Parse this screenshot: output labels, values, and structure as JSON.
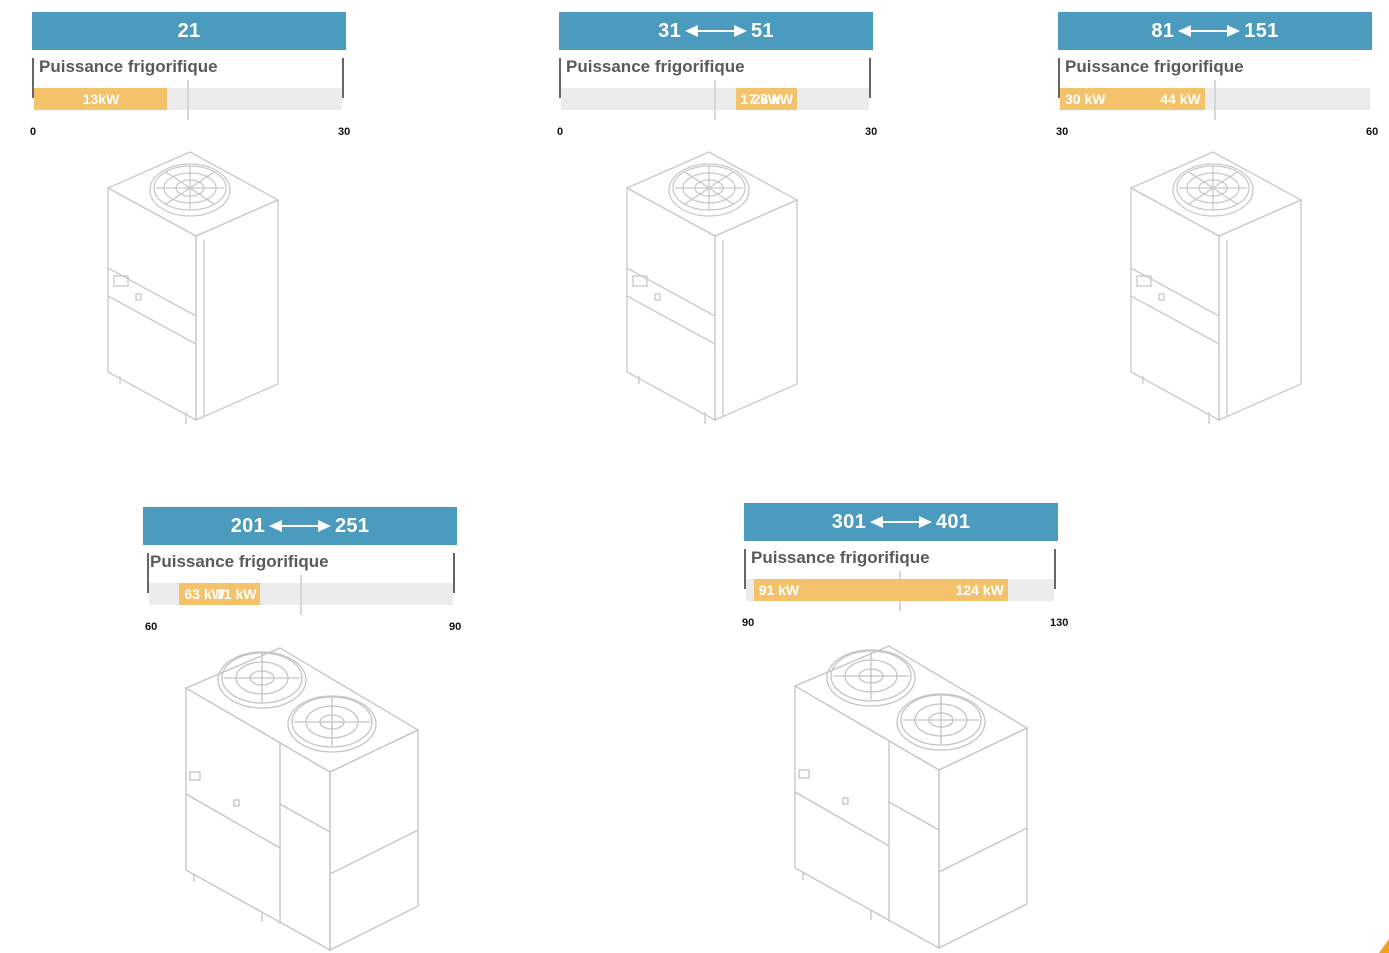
{
  "chart_data": [
    {
      "type": "bar",
      "header": {
        "from": "21",
        "to": ""
      },
      "title": "Puissance frigorifique",
      "xlim": [
        0,
        30
      ],
      "axis_labels": [
        "0",
        "30"
      ],
      "range": [
        0,
        13
      ],
      "value_labels": [
        "13kW"
      ],
      "fans": 1
    },
    {
      "type": "bar",
      "header": {
        "from": "31",
        "to": "51"
      },
      "title": "Puissance frigorifique",
      "xlim": [
        0,
        30
      ],
      "axis_labels": [
        "0",
        "30"
      ],
      "range": [
        17,
        23
      ],
      "value_labels": [
        "17 kW",
        "23 kW"
      ],
      "fans": 1
    },
    {
      "type": "bar",
      "header": {
        "from": "81",
        "to": "151"
      },
      "title": "Puissance frigorifique",
      "xlim": [
        30,
        60
      ],
      "axis_labels": [
        "30",
        "60"
      ],
      "range": [
        30,
        44
      ],
      "value_labels": [
        "30 kW",
        "44 kW"
      ],
      "fans": 1
    },
    {
      "type": "bar",
      "header": {
        "from": "201",
        "to": "251"
      },
      "title": "Puissance frigorifique",
      "xlim": [
        60,
        90
      ],
      "axis_labels": [
        "60",
        "90"
      ],
      "range": [
        63,
        71
      ],
      "value_labels": [
        "63 kW",
        "71 kW"
      ],
      "fans": 2
    },
    {
      "type": "bar",
      "header": {
        "from": "301",
        "to": "401"
      },
      "title": "Puissance frigorifique",
      "xlim": [
        90,
        130
      ],
      "axis_labels": [
        "90",
        "130"
      ],
      "range": [
        91,
        124
      ],
      "value_labels": [
        "91 kW",
        "124 kW"
      ],
      "fans": 2
    }
  ],
  "colors": {
    "header": "#4a9bbd",
    "fill": "#f4c26b",
    "track": "#ececec",
    "corner_accent": "#f0a020"
  },
  "icons": [
    "arrow-both-icon",
    "chiller-unit-single-fan-icon",
    "chiller-unit-double-fan-icon"
  ]
}
